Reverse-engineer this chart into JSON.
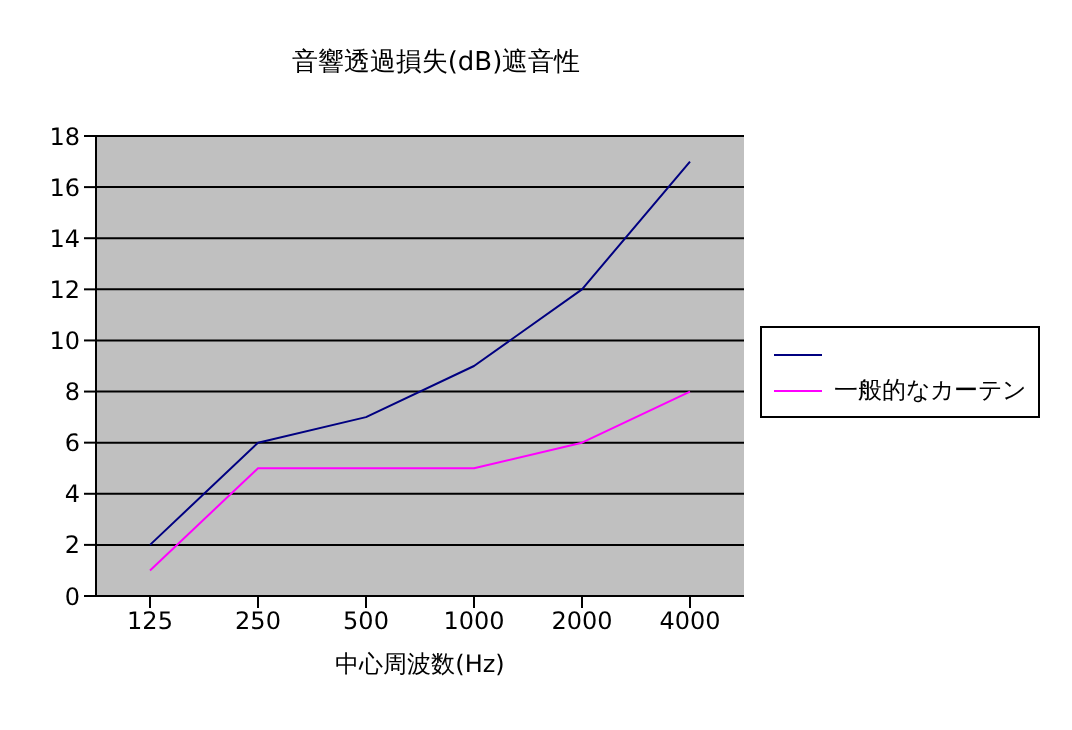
{
  "chart_data": {
    "type": "line",
    "title": "音響透過損失(dB)遮音性",
    "xlabel": "中心周波数(Hz)",
    "categories": [
      "125",
      "250",
      "500",
      "1000",
      "2000",
      "4000"
    ],
    "series": [
      {
        "color": "#000080",
        "values": [
          2,
          6,
          7,
          9,
          12,
          17
        ]
      },
      {
        "name": "一般的なカーテン",
        "color": "#ff00ff",
        "values": [
          1,
          5,
          5,
          5,
          6,
          8
        ]
      }
    ],
    "ylim": [
      0,
      18
    ],
    "yticks": [
      0,
      2,
      4,
      6,
      8,
      10,
      12,
      14,
      16,
      18
    ],
    "grid": "y",
    "legend": "right",
    "marker": "none",
    "line_style": "solid"
  }
}
